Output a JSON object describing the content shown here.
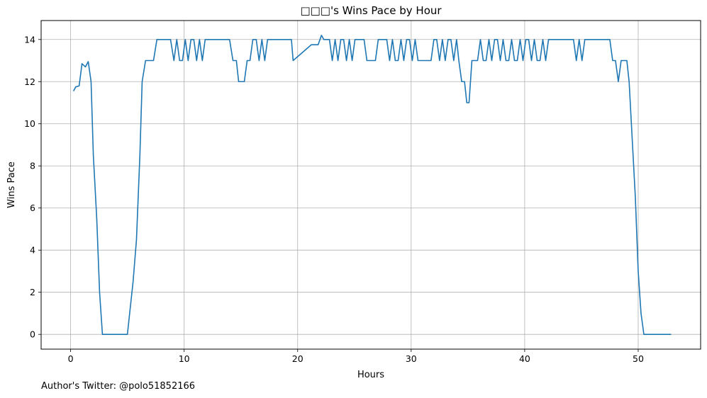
{
  "chart_data": {
    "type": "line",
    "title": "□□□'s Wins Pace by Hour",
    "xlabel": "Hours",
    "ylabel": "Wins Pace",
    "xlim": [
      -2.6,
      55.5
    ],
    "ylim": [
      -0.7,
      14.9
    ],
    "xticks": [
      0,
      10,
      20,
      30,
      40,
      50
    ],
    "yticks": [
      0,
      2,
      4,
      6,
      8,
      10,
      12,
      14
    ],
    "grid": true,
    "legend": "none",
    "color": "#1f77b4",
    "series": [
      {
        "points": [
          [
            0.25,
            11.55
          ],
          [
            0.45,
            11.75
          ],
          [
            0.75,
            11.8
          ],
          [
            1.0,
            12.85
          ],
          [
            1.3,
            12.7
          ],
          [
            1.55,
            12.95
          ],
          [
            1.8,
            12.0
          ],
          [
            2.0,
            8.5
          ],
          [
            2.3,
            5.5
          ],
          [
            2.55,
            2.0
          ],
          [
            2.8,
            0.0
          ],
          [
            3.5,
            0.0
          ],
          [
            4.5,
            0.0
          ],
          [
            5.0,
            0.0
          ],
          [
            5.5,
            2.5
          ],
          [
            5.8,
            4.5
          ],
          [
            6.1,
            8.5
          ],
          [
            6.3,
            12.0
          ],
          [
            6.6,
            13.0
          ],
          [
            7.0,
            13.0
          ],
          [
            7.3,
            13.0
          ],
          [
            7.6,
            14.0
          ],
          [
            8.0,
            14.0
          ],
          [
            8.5,
            14.0
          ],
          [
            8.8,
            14.0
          ],
          [
            9.1,
            13.0
          ],
          [
            9.35,
            14.0
          ],
          [
            9.6,
            13.0
          ],
          [
            9.85,
            13.0
          ],
          [
            10.1,
            14.0
          ],
          [
            10.35,
            13.0
          ],
          [
            10.6,
            14.0
          ],
          [
            10.85,
            14.0
          ],
          [
            11.1,
            13.0
          ],
          [
            11.35,
            14.0
          ],
          [
            11.6,
            13.0
          ],
          [
            11.85,
            14.0
          ],
          [
            12.5,
            14.0
          ],
          [
            13.0,
            14.0
          ],
          [
            13.5,
            14.0
          ],
          [
            14.0,
            14.0
          ],
          [
            14.3,
            13.0
          ],
          [
            14.6,
            13.0
          ],
          [
            14.8,
            12.0
          ],
          [
            15.1,
            12.0
          ],
          [
            15.3,
            12.0
          ],
          [
            15.55,
            13.0
          ],
          [
            15.8,
            13.0
          ],
          [
            16.05,
            14.0
          ],
          [
            16.35,
            14.0
          ],
          [
            16.6,
            13.0
          ],
          [
            16.85,
            14.0
          ],
          [
            17.1,
            13.0
          ],
          [
            17.35,
            14.0
          ],
          [
            18.0,
            14.0
          ],
          [
            18.5,
            14.0
          ],
          [
            19.0,
            14.0
          ],
          [
            19.45,
            14.0
          ],
          [
            19.6,
            13.0
          ],
          [
            21.2,
            13.75
          ],
          [
            21.8,
            13.75
          ],
          [
            22.1,
            14.2
          ],
          [
            22.3,
            14.0
          ],
          [
            22.8,
            14.0
          ],
          [
            23.05,
            13.0
          ],
          [
            23.3,
            14.0
          ],
          [
            23.55,
            13.0
          ],
          [
            23.8,
            14.0
          ],
          [
            24.05,
            14.0
          ],
          [
            24.3,
            13.0
          ],
          [
            24.55,
            14.0
          ],
          [
            24.8,
            13.0
          ],
          [
            25.05,
            14.0
          ],
          [
            25.5,
            14.0
          ],
          [
            25.85,
            14.0
          ],
          [
            26.1,
            13.0
          ],
          [
            26.5,
            13.0
          ],
          [
            26.85,
            13.0
          ],
          [
            27.1,
            14.0
          ],
          [
            27.6,
            14.0
          ],
          [
            27.85,
            14.0
          ],
          [
            28.1,
            13.0
          ],
          [
            28.35,
            14.0
          ],
          [
            28.6,
            13.0
          ],
          [
            28.85,
            13.0
          ],
          [
            29.1,
            14.0
          ],
          [
            29.35,
            13.0
          ],
          [
            29.6,
            14.0
          ],
          [
            29.85,
            14.0
          ],
          [
            30.1,
            13.0
          ],
          [
            30.35,
            14.0
          ],
          [
            30.6,
            13.0
          ],
          [
            31.0,
            13.0
          ],
          [
            31.4,
            13.0
          ],
          [
            31.75,
            13.0
          ],
          [
            32.0,
            14.0
          ],
          [
            32.25,
            14.0
          ],
          [
            32.5,
            13.0
          ],
          [
            32.75,
            14.0
          ],
          [
            33.0,
            13.0
          ],
          [
            33.25,
            14.0
          ],
          [
            33.5,
            14.0
          ],
          [
            33.75,
            13.0
          ],
          [
            34.0,
            14.0
          ],
          [
            34.2,
            13.0
          ],
          [
            34.45,
            12.0
          ],
          [
            34.7,
            12.0
          ],
          [
            34.9,
            11.0
          ],
          [
            35.1,
            11.0
          ],
          [
            35.35,
            13.0
          ],
          [
            35.6,
            13.0
          ],
          [
            35.85,
            13.0
          ],
          [
            36.1,
            14.0
          ],
          [
            36.35,
            13.0
          ],
          [
            36.6,
            13.0
          ],
          [
            36.85,
            14.0
          ],
          [
            37.1,
            13.0
          ],
          [
            37.35,
            14.0
          ],
          [
            37.6,
            14.0
          ],
          [
            37.85,
            13.0
          ],
          [
            38.1,
            14.0
          ],
          [
            38.35,
            13.0
          ],
          [
            38.6,
            13.0
          ],
          [
            38.85,
            14.0
          ],
          [
            39.1,
            13.0
          ],
          [
            39.35,
            13.0
          ],
          [
            39.6,
            14.0
          ],
          [
            39.85,
            13.0
          ],
          [
            40.1,
            14.0
          ],
          [
            40.35,
            14.0
          ],
          [
            40.6,
            13.0
          ],
          [
            40.85,
            14.0
          ],
          [
            41.1,
            13.0
          ],
          [
            41.35,
            13.0
          ],
          [
            41.6,
            14.0
          ],
          [
            41.85,
            13.0
          ],
          [
            42.1,
            14.0
          ],
          [
            42.6,
            14.0
          ],
          [
            43.1,
            14.0
          ],
          [
            43.6,
            14.0
          ],
          [
            44.3,
            14.0
          ],
          [
            44.55,
            13.0
          ],
          [
            44.8,
            14.0
          ],
          [
            45.05,
            13.0
          ],
          [
            45.3,
            14.0
          ],
          [
            45.8,
            14.0
          ],
          [
            46.3,
            14.0
          ],
          [
            46.8,
            14.0
          ],
          [
            47.5,
            14.0
          ],
          [
            47.75,
            13.0
          ],
          [
            48.0,
            13.0
          ],
          [
            48.25,
            12.0
          ],
          [
            48.5,
            13.0
          ],
          [
            49.0,
            13.0
          ],
          [
            49.2,
            12.0
          ],
          [
            49.5,
            9.0
          ],
          [
            49.75,
            6.5
          ],
          [
            50.0,
            3.0
          ],
          [
            50.25,
            1.0
          ],
          [
            50.5,
            0.0
          ],
          [
            51.0,
            0.0
          ],
          [
            52.0,
            0.0
          ],
          [
            52.9,
            0.0
          ]
        ]
      }
    ]
  },
  "footer": {
    "author_text": "Author's Twitter: @polo51852166"
  }
}
